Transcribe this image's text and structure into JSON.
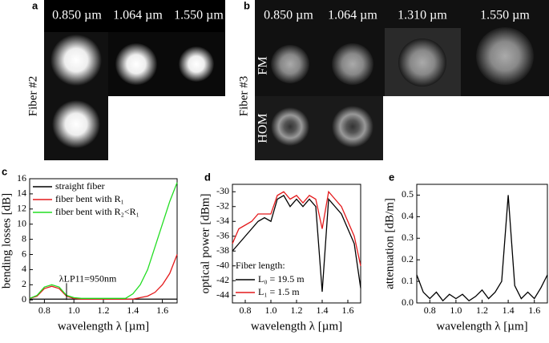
{
  "images": {
    "a": {
      "letter": "a",
      "wavelengths": [
        "0.850 µm",
        "1.064 µm",
        "1.550 µm"
      ],
      "row_label": "Fiber #2"
    },
    "b": {
      "letter": "b",
      "wavelengths": [
        "0.850 µm",
        "1.064 µm",
        "1.310 µm",
        "1.550 µm"
      ],
      "row_label": "Fiber #3",
      "rows": [
        "FM",
        "HOM"
      ]
    }
  },
  "chart_data": [
    {
      "type": "line",
      "letter": "c",
      "xlabel": "wavelength λ [µm]",
      "ylabel": "bending losses [dB]",
      "x": [
        0.7,
        0.75,
        0.8,
        0.85,
        0.9,
        0.95,
        1.0,
        1.05,
        1.1,
        1.15,
        1.2,
        1.25,
        1.3,
        1.35,
        1.4,
        1.45,
        1.5,
        1.55,
        1.6,
        1.65,
        1.7
      ],
      "xlim": [
        0.7,
        1.7
      ],
      "xticks": [
        0.8,
        {
          "value": 1,
          "label": "1.0"
        },
        1.2,
        1.4,
        1.6
      ],
      "ylim": [
        -0.4,
        16
      ],
      "yticks": [
        0,
        2,
        4,
        6,
        8,
        10,
        12,
        14,
        16
      ],
      "legend": "upper left",
      "annotation": "λLP11=950nm",
      "series": [
        {
          "name": "straight fiber",
          "color": "#000000",
          "values": [
            0.1,
            0.1,
            0.1,
            0.1,
            0.1,
            0.1,
            0.1,
            0.1,
            0.1,
            0.1,
            0.1,
            0.1,
            0.1,
            0.1,
            0.1,
            0.1,
            0.1,
            0.1,
            0.1,
            0.1,
            0.1
          ]
        },
        {
          "name": "fiber bent with R₁",
          "color": "#e41a1c",
          "values": [
            0.2,
            0.5,
            1.5,
            1.8,
            1.5,
            0.5,
            0.2,
            0.1,
            0.1,
            0.1,
            0.1,
            0.1,
            0.1,
            0.1,
            0.1,
            0.3,
            0.5,
            1,
            2,
            3.5,
            6
          ]
        },
        {
          "name": "fiber bent with R₂<R₁",
          "color": "#22dd22",
          "values": [
            0.2,
            0.6,
            1.7,
            2,
            1.7,
            0.6,
            0.3,
            0.2,
            0.2,
            0.2,
            0.2,
            0.2,
            0.2,
            0.2,
            0.8,
            2,
            4,
            7,
            10,
            13,
            15.5
          ]
        }
      ]
    },
    {
      "type": "line",
      "letter": "d",
      "xlabel": "wavelength λ [µm]",
      "ylabel": "optical power [dBm]",
      "x": [
        0.7,
        0.75,
        0.8,
        0.85,
        0.9,
        0.95,
        1.0,
        1.05,
        1.1,
        1.15,
        1.2,
        1.25,
        1.3,
        1.35,
        1.4,
        1.45,
        1.5,
        1.55,
        1.6,
        1.65,
        1.7
      ],
      "xlim": [
        0.7,
        1.7
      ],
      "xticks": [
        0.8,
        {
          "value": 1,
          "label": "1.0"
        },
        1.2,
        1.4,
        1.6
      ],
      "ylim": [
        -45,
        -29
      ],
      "yticks": [
        -44,
        -42,
        -40,
        -38,
        -36,
        -34,
        -32,
        -30
      ],
      "legend": "lower left",
      "legend_title": "Fiber length:",
      "series": [
        {
          "name": "L₀ = 19.5 m",
          "color": "#000000",
          "values": [
            -38,
            -37,
            -36,
            -35,
            -34,
            -33.5,
            -34,
            -31,
            -30.5,
            -32,
            -31,
            -32,
            -31,
            -32,
            -43.5,
            -31,
            -32,
            -33,
            -35,
            -37,
            -43
          ]
        },
        {
          "name": "L₁ = 1.5 m",
          "color": "#e41a1c",
          "values": [
            -37,
            -35,
            -34.5,
            -34,
            -33,
            -33,
            -33,
            -30.5,
            -30,
            -31,
            -30.5,
            -31.5,
            -30.5,
            -31,
            -35,
            -30,
            -31,
            -32,
            -34,
            -36,
            -40
          ]
        }
      ]
    },
    {
      "type": "line",
      "letter": "e",
      "xlabel": "wavelength λ [µm]",
      "ylabel": "attenuation [dB/m]",
      "x": [
        0.7,
        0.75,
        0.8,
        0.85,
        0.9,
        0.95,
        1.0,
        1.05,
        1.1,
        1.15,
        1.2,
        1.25,
        1.3,
        1.35,
        1.4,
        1.45,
        1.5,
        1.55,
        1.6,
        1.65,
        1.7
      ],
      "xlim": [
        0.7,
        1.7
      ],
      "xticks": [
        0.8,
        {
          "value": 1,
          "label": "1.0"
        },
        1.2,
        1.4,
        1.6
      ],
      "ylim": [
        0,
        0.55
      ],
      "yticks": [
        {
          "value": 0,
          "label": "0.0"
        },
        0.1,
        0.2,
        0.3,
        0.4,
        0.5
      ],
      "series": [
        {
          "color": "#000000",
          "values": [
            0.13,
            0.05,
            0.02,
            0.05,
            0.01,
            0.04,
            0.02,
            0.04,
            0.01,
            0.03,
            0.06,
            0.02,
            0.05,
            0.1,
            0.5,
            0.08,
            0.02,
            0.05,
            0.02,
            0.07,
            0.13
          ]
        }
      ]
    }
  ]
}
